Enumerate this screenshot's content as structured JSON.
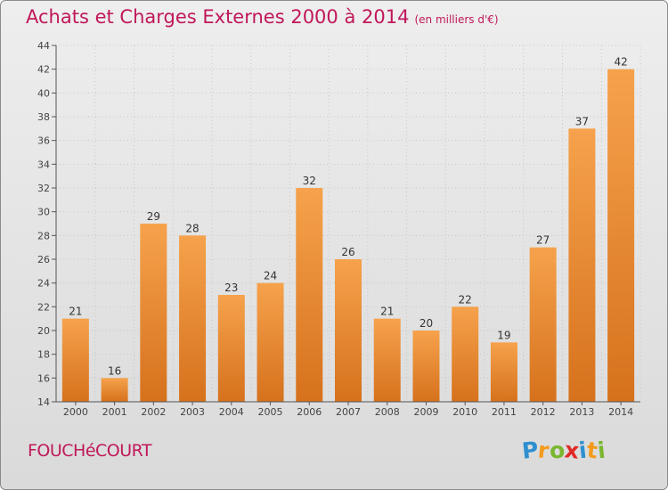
{
  "title": "Achats et Charges Externes 2000 à 2014",
  "subtitle": "(en milliers d'€)",
  "town": "FOUCHéCOURT",
  "logo": {
    "letters": [
      "P",
      "r",
      "o",
      "x",
      "i",
      "t",
      "i"
    ],
    "colors": [
      "#2e8fd0",
      "#f39a1e",
      "#7ab62f",
      "#e02a27",
      "#2e8fd0",
      "#f39a1e",
      "#7ab62f"
    ]
  },
  "colors": {
    "bar_top": "#f6a24c",
    "bar_bottom": "#d6711c",
    "title": "#c0185a"
  },
  "chart_data": {
    "type": "bar",
    "categories": [
      "2000",
      "2001",
      "2002",
      "2003",
      "2004",
      "2005",
      "2006",
      "2007",
      "2008",
      "2009",
      "2010",
      "2011",
      "2012",
      "2013",
      "2014"
    ],
    "values": [
      21,
      16,
      29,
      28,
      23,
      24,
      32,
      26,
      21,
      20,
      22,
      19,
      27,
      37,
      42
    ],
    "ylim": [
      14,
      44
    ],
    "yticks": [
      14,
      16,
      18,
      20,
      22,
      24,
      26,
      28,
      30,
      32,
      34,
      36,
      38,
      40,
      42,
      44
    ],
    "grid": true,
    "xlabel": "",
    "ylabel": ""
  }
}
